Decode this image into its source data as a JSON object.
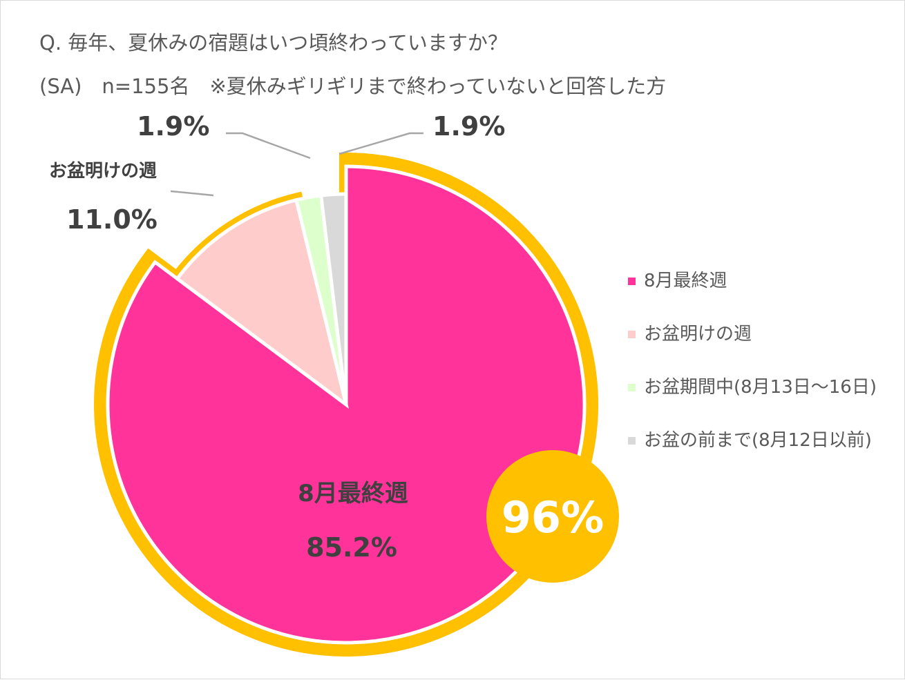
{
  "title": "Q. 毎年、夏休みの宿題はいつ頃終わっていますか？",
  "subtitle": "(SA)　n=155名　※夏休みギリギリまで終わっていないと回答した方",
  "chart_data": {
    "type": "pie",
    "categories": [
      "8月最終週",
      "お盆明けの週",
      "お盆期間中(8月13日～16日)",
      "お盆の前まで(8月12日以前)"
    ],
    "values": [
      85.2,
      11.0,
      1.9,
      1.9
    ],
    "value_labels": [
      "85.2%",
      "11.0%",
      "1.9%",
      "1.9%"
    ],
    "slice_name_labels": [
      "8月最終週",
      "お盆明けの週",
      "",
      ""
    ],
    "colors": [
      "#ff3399",
      "#ffcccc",
      "#ddffcc",
      "#d9d9d9"
    ],
    "highlight_color": "#ffc000",
    "highlight_label": "96%",
    "legend_position": "right"
  }
}
